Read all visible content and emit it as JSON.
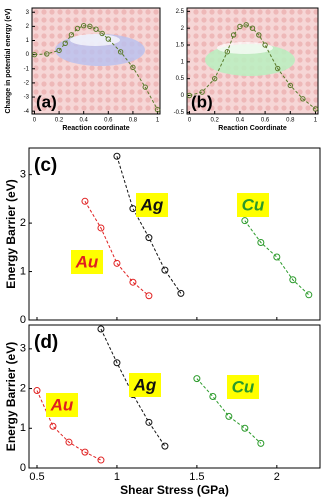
{
  "chart_data": [
    {
      "type": "line",
      "label": "(a)",
      "xlabel": "Reaction coordinate",
      "ylabel": "Change in potential energy (eV)",
      "xlim": [
        -0.02,
        1.02
      ],
      "ylim": [
        -4.2,
        3.3
      ],
      "xticks": [
        0,
        0.2,
        0.4,
        0.6,
        0.8,
        1
      ],
      "yticks": [
        -4,
        -3,
        -2,
        -1,
        0,
        1,
        2,
        3
      ],
      "series": [
        {
          "color": "#5a7a2a",
          "x": [
            0,
            0.1,
            0.2,
            0.25,
            0.3,
            0.35,
            0.4,
            0.45,
            0.5,
            0.55,
            0.6,
            0.7,
            0.8,
            0.9,
            1
          ],
          "values": [
            0,
            0.05,
            0.3,
            0.8,
            1.4,
            1.85,
            2.05,
            2.0,
            1.8,
            1.5,
            1.1,
            0.2,
            -0.9,
            -2.3,
            -3.9
          ]
        }
      ]
    },
    {
      "type": "line",
      "label": "(b)",
      "xlabel": "Reaction Coordinate",
      "xlim": [
        -0.02,
        1.02
      ],
      "ylim": [
        -0.55,
        2.6
      ],
      "xticks": [
        0,
        0.2,
        0.4,
        0.6,
        0.8,
        1
      ],
      "yticks": [
        -0.5,
        0,
        0.5,
        1,
        1.5,
        2,
        2.5
      ],
      "series": [
        {
          "color": "#5a7a2a",
          "x": [
            0,
            0.1,
            0.2,
            0.3,
            0.35,
            0.4,
            0.45,
            0.5,
            0.55,
            0.6,
            0.7,
            0.8,
            0.9,
            1
          ],
          "values": [
            0,
            0.1,
            0.5,
            1.3,
            1.8,
            2.05,
            2.1,
            2.0,
            1.8,
            1.5,
            0.8,
            0.3,
            -0.1,
            -0.4
          ]
        }
      ]
    },
    {
      "type": "line",
      "label": "(c)",
      "ylabel": "Energy Barrier (eV)",
      "xlim": [
        0.45,
        2.27
      ],
      "ylim": [
        0,
        3.55
      ],
      "xticks": [
        0.5,
        1,
        1.5,
        2
      ],
      "yticks": [
        0,
        1,
        2,
        3
      ],
      "series": [
        {
          "name": "Au",
          "color": "#e02020",
          "x": [
            0.8,
            0.9,
            1.0,
            1.1,
            1.2
          ],
          "values": [
            2.45,
            1.9,
            1.17,
            0.78,
            0.5
          ]
        },
        {
          "name": "Ag",
          "color": "#111111",
          "x": [
            1.0,
            1.1,
            1.2,
            1.3,
            1.4
          ],
          "values": [
            3.38,
            2.3,
            1.7,
            1.03,
            0.55
          ]
        },
        {
          "name": "Cu",
          "color": "#2a9a2a",
          "x": [
            1.8,
            1.9,
            2.0,
            2.1,
            2.2
          ],
          "values": [
            2.05,
            1.6,
            1.3,
            0.83,
            0.52
          ]
        }
      ]
    },
    {
      "type": "line",
      "label": "(d)",
      "xlabel": "Shear Stress (GPa)",
      "ylabel": "Energy Barrier (eV)",
      "xlim": [
        0.45,
        2.27
      ],
      "ylim": [
        0,
        3.6
      ],
      "xticks": [
        0.5,
        1,
        1.5,
        2
      ],
      "yticks": [
        0,
        1,
        2,
        3
      ],
      "series": [
        {
          "name": "Au",
          "color": "#e02020",
          "x": [
            0.5,
            0.6,
            0.7,
            0.8,
            0.9
          ],
          "values": [
            1.95,
            1.05,
            0.65,
            0.4,
            0.2
          ]
        },
        {
          "name": "Ag",
          "color": "#111111",
          "x": [
            0.9,
            1.0,
            1.1,
            1.2,
            1.3
          ],
          "values": [
            3.5,
            2.65,
            1.85,
            1.15,
            0.55
          ]
        },
        {
          "name": "Cu",
          "color": "#2a9a2a",
          "x": [
            1.5,
            1.6,
            1.7,
            1.8,
            1.9
          ],
          "values": [
            2.25,
            1.8,
            1.3,
            1.0,
            0.62
          ]
        }
      ]
    }
  ]
}
